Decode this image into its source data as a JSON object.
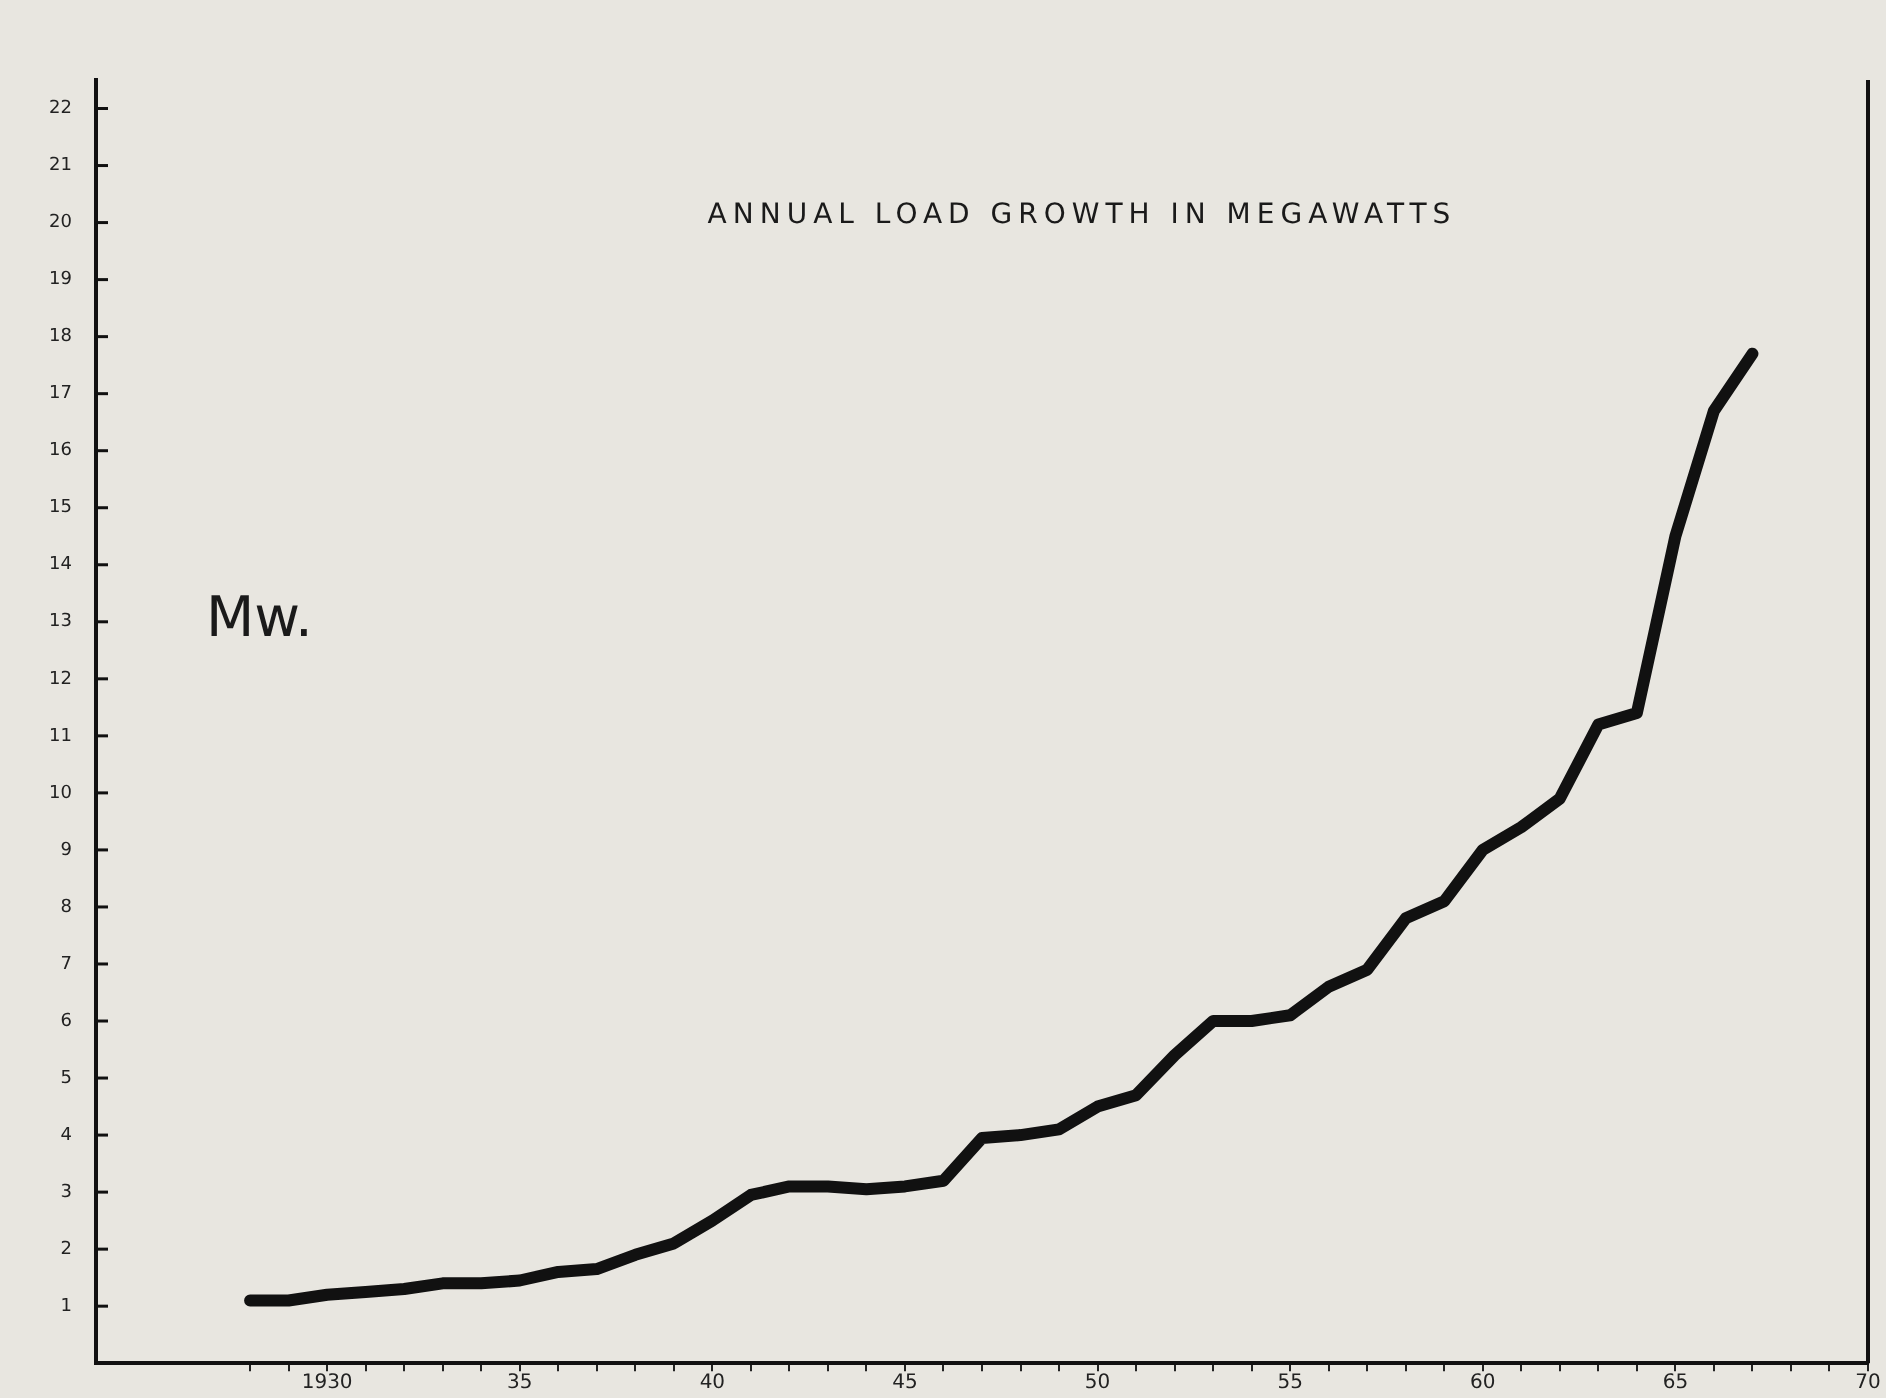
{
  "chart_data": {
    "type": "line",
    "title": "ANNUAL LOAD GROWTH IN MEGAWATTS",
    "ylabel": "Mw.",
    "x": [
      1928,
      1929,
      1930,
      1931,
      1932,
      1933,
      1934,
      1935,
      1936,
      1937,
      1938,
      1939,
      1940,
      1941,
      1942,
      1943,
      1944,
      1945,
      1946,
      1947,
      1948,
      1949,
      1950,
      1951,
      1952,
      1953,
      1954,
      1955,
      1956,
      1957,
      1958,
      1959,
      1960,
      1961,
      1962,
      1963,
      1964,
      1965,
      1966,
      1967
    ],
    "series": [
      {
        "color": "#111111",
        "values": [
          1.1,
          1.1,
          1.2,
          1.25,
          1.3,
          1.4,
          1.4,
          1.45,
          1.6,
          1.65,
          1.9,
          2.1,
          2.5,
          2.95,
          3.1,
          3.1,
          3.05,
          3.1,
          3.2,
          3.95,
          4.0,
          4.1,
          4.5,
          4.7,
          5.4,
          6.0,
          6.0,
          6.1,
          6.6,
          6.9,
          7.8,
          8.1,
          9.0,
          9.4,
          9.9,
          11.2,
          11.4,
          14.5,
          16.7,
          17.7
        ]
      }
    ],
    "xlim": [
      1924,
      1970
    ],
    "xticks": [
      {
        "value": 1928,
        "label": null
      },
      {
        "value": 1929,
        "label": null
      },
      {
        "value": 1930,
        "label": "1930"
      },
      {
        "value": 1931,
        "label": null
      },
      {
        "value": 1932,
        "label": null
      },
      {
        "value": 1933,
        "label": null
      },
      {
        "value": 1934,
        "label": null
      },
      {
        "value": 1935,
        "label": "35"
      },
      {
        "value": 1936,
        "label": null
      },
      {
        "value": 1937,
        "label": null
      },
      {
        "value": 1938,
        "label": null
      },
      {
        "value": 1939,
        "label": null
      },
      {
        "value": 1940,
        "label": "40"
      },
      {
        "value": 1941,
        "label": null
      },
      {
        "value": 1942,
        "label": null
      },
      {
        "value": 1943,
        "label": null
      },
      {
        "value": 1944,
        "label": null
      },
      {
        "value": 1945,
        "label": "45"
      },
      {
        "value": 1946,
        "label": null
      },
      {
        "value": 1947,
        "label": null
      },
      {
        "value": 1948,
        "label": null
      },
      {
        "value": 1949,
        "label": null
      },
      {
        "value": 1950,
        "label": "50"
      },
      {
        "value": 1951,
        "label": null
      },
      {
        "value": 1952,
        "label": null
      },
      {
        "value": 1953,
        "label": null
      },
      {
        "value": 1954,
        "label": null
      },
      {
        "value": 1955,
        "label": "55"
      },
      {
        "value": 1956,
        "label": null
      },
      {
        "value": 1957,
        "label": null
      },
      {
        "value": 1958,
        "label": null
      },
      {
        "value": 1959,
        "label": null
      },
      {
        "value": 1960,
        "label": "60"
      },
      {
        "value": 1961,
        "label": null
      },
      {
        "value": 1962,
        "label": null
      },
      {
        "value": 1963,
        "label": null
      },
      {
        "value": 1964,
        "label": null
      },
      {
        "value": 1965,
        "label": "65"
      },
      {
        "value": 1966,
        "label": null
      },
      {
        "value": 1967,
        "label": null
      },
      {
        "value": 1968,
        "label": null
      },
      {
        "value": 1969,
        "label": null
      },
      {
        "value": 1970,
        "label": "70"
      }
    ],
    "ylim": [
      0,
      22.5
    ],
    "yticks": [
      1,
      2,
      3,
      4,
      5,
      6,
      7,
      8,
      9,
      10,
      11,
      12,
      13,
      14,
      15,
      16,
      17,
      18,
      19,
      20,
      21,
      22
    ],
    "grid": false,
    "legend": false,
    "marker": "none",
    "line_style": "solid"
  }
}
